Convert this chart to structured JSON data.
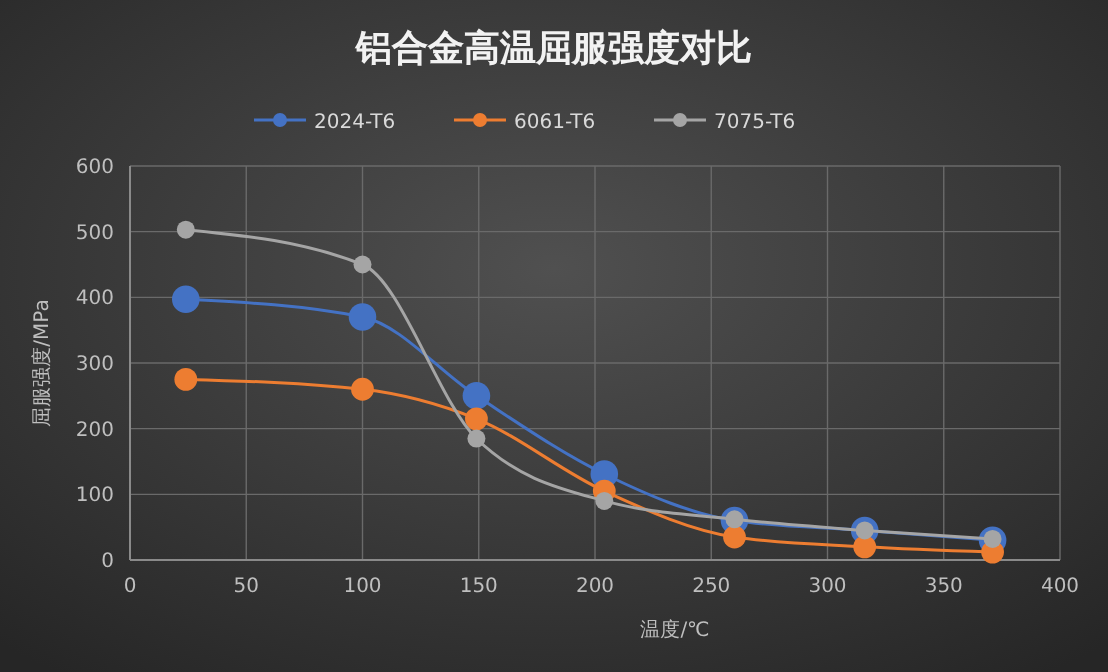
{
  "chart_data": {
    "type": "line",
    "title": "铝合金高温屈服强度对比",
    "xlabel": "温度/℃",
    "ylabel": "屈服强度/MPa",
    "x": [
      24,
      100,
      149,
      204,
      260,
      316,
      371
    ],
    "series": [
      {
        "name": "2024-T6",
        "color": "#4472c4",
        "values": [
          397,
          370,
          250,
          131,
          60,
          45,
          30
        ]
      },
      {
        "name": "6061-T6",
        "color": "#ed7d31",
        "values": [
          275,
          260,
          215,
          105,
          35,
          20,
          12
        ]
      },
      {
        "name": "7075-T6",
        "color": "#a5a5a5",
        "values": [
          503,
          450,
          185,
          90,
          62,
          45,
          32
        ]
      }
    ],
    "xlim": [
      0,
      400
    ],
    "xticks": [
      0,
      50,
      100,
      150,
      200,
      250,
      300,
      350,
      400
    ],
    "ylim": [
      0,
      600
    ],
    "yticks": [
      0,
      100,
      200,
      300,
      400,
      500,
      600
    ],
    "grid": true,
    "legend": "top",
    "marker": "circle",
    "line_style": "solid"
  }
}
